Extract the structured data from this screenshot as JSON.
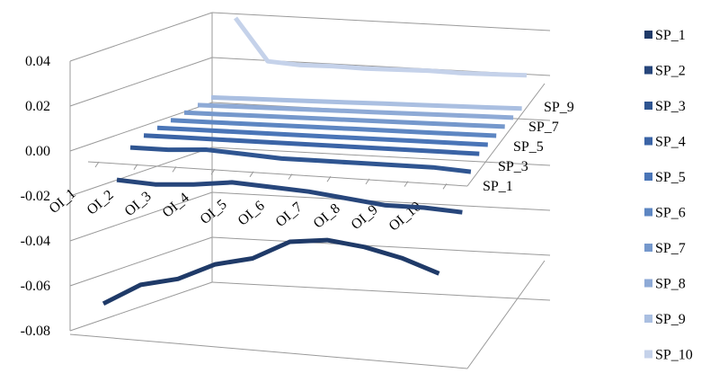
{
  "chart_data": {
    "type": "line",
    "view": "3d",
    "categories": [
      "OI_1",
      "OI_2",
      "OI_3",
      "OI_4",
      "OI_5",
      "OI_6",
      "OI_7",
      "OI_8",
      "OI_9",
      "OI_10"
    ],
    "depth_tick_labels": [
      "SP_1",
      "SP_3",
      "SP_5",
      "SP_7",
      "SP_9"
    ],
    "y_ticks": [
      "0.04",
      "0.02",
      "0.00",
      "-0.02",
      "-0.04",
      "-0.06",
      "-0.08"
    ],
    "ylim": [
      -0.08,
      0.04
    ],
    "grid": true,
    "legend": "right",
    "series": [
      {
        "name": "SP_1",
        "color": "#1f3a68",
        "values": [
          -0.074,
          -0.065,
          -0.062,
          -0.055,
          -0.052,
          -0.044,
          -0.043,
          -0.046,
          -0.051,
          -0.058
        ]
      },
      {
        "name": "SP_2",
        "color": "#27467b",
        "values": [
          -0.013,
          -0.014,
          -0.013,
          -0.011,
          -0.012,
          -0.013,
          -0.015,
          -0.017,
          -0.017,
          -0.018
        ]
      },
      {
        "name": "SP_3",
        "color": "#2f5591",
        "values": [
          -0.002,
          -0.002,
          -0.001,
          -0.002,
          -0.003,
          -0.003,
          -0.003,
          -0.003,
          -0.003,
          -0.004
        ]
      },
      {
        "name": "SP_4",
        "color": "#3b64a6",
        "values": [
          0.0,
          0.0,
          0.0,
          0.0,
          0.0,
          0.0,
          0.0,
          0.0,
          0.0,
          0.0
        ]
      },
      {
        "name": "SP_5",
        "color": "#4a75b7",
        "values": [
          0.0,
          0.0,
          0.0,
          0.0,
          0.0,
          0.0,
          0.0,
          0.0,
          0.0,
          0.0
        ]
      },
      {
        "name": "SP_6",
        "color": "#5d86c2",
        "values": [
          0.0,
          0.0,
          0.0,
          0.0,
          0.0,
          0.0,
          0.0,
          0.0,
          0.0,
          0.0
        ]
      },
      {
        "name": "SP_7",
        "color": "#7598cc",
        "values": [
          0.0,
          0.0,
          0.0,
          0.0,
          0.0,
          0.0,
          0.0,
          0.0,
          0.0,
          0.0
        ]
      },
      {
        "name": "SP_8",
        "color": "#8eaad6",
        "values": [
          0.0,
          0.0,
          0.0,
          0.0,
          0.0,
          0.0,
          0.0,
          0.0,
          0.0,
          0.0
        ]
      },
      {
        "name": "SP_9",
        "color": "#aabfe1",
        "values": [
          0.0,
          0.0,
          0.0,
          0.0,
          0.0,
          0.0,
          0.0,
          0.0,
          0.0,
          0.0
        ]
      },
      {
        "name": "SP_10",
        "color": "#c5d2ea",
        "values": [
          0.055,
          0.037,
          0.035,
          0.035,
          0.034,
          0.034,
          0.034,
          0.033,
          0.033,
          0.033
        ]
      }
    ]
  }
}
